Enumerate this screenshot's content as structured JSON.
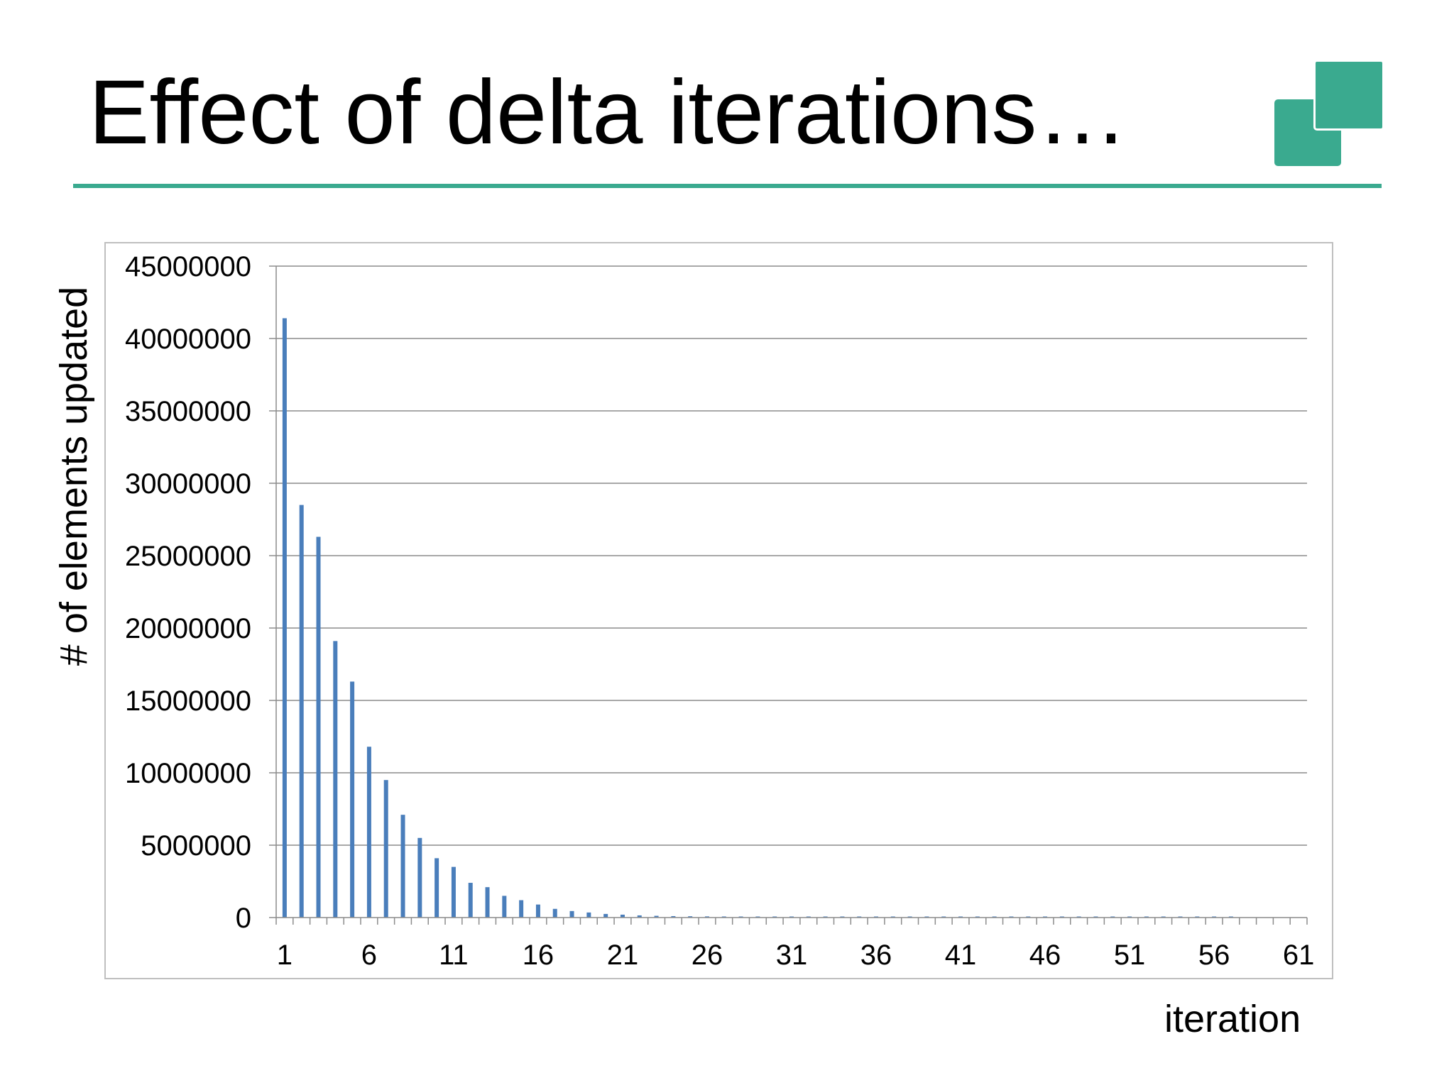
{
  "slide": {
    "title": "Effect of delta iterations…",
    "accent_color": "#3aaa8f"
  },
  "logo": {
    "icon": "two-overlapping-squares-icon",
    "color": "#3aaa8f"
  },
  "chart_data": {
    "type": "bar",
    "title": "",
    "xlabel": "iteration",
    "ylabel": "# of elements updated",
    "ylim": [
      0,
      45000000
    ],
    "yticks": [
      "0",
      "5000000",
      "10000000",
      "15000000",
      "20000000",
      "25000000",
      "30000000",
      "35000000",
      "40000000",
      "45000000"
    ],
    "xtick_labels": [
      "1",
      "6",
      "11",
      "16",
      "21",
      "26",
      "31",
      "36",
      "41",
      "46",
      "51",
      "56",
      "61"
    ],
    "grid": true,
    "legend": "none",
    "bar_color": "#4a7ebb",
    "categories": [
      1,
      2,
      3,
      4,
      5,
      6,
      7,
      8,
      9,
      10,
      11,
      12,
      13,
      14,
      15,
      16,
      17,
      18,
      19,
      20,
      21,
      22,
      23,
      24,
      25,
      26,
      27,
      28,
      29,
      30,
      31,
      32,
      33,
      34,
      35,
      36,
      37,
      38,
      39,
      40,
      41,
      42,
      43,
      44,
      45,
      46,
      47,
      48,
      49,
      50,
      51,
      52,
      53,
      54,
      55,
      56,
      57,
      58,
      59,
      60,
      61
    ],
    "values": [
      41400000,
      28500000,
      26300000,
      19100000,
      16300000,
      11800000,
      9500000,
      7100000,
      5500000,
      4100000,
      3500000,
      2400000,
      2100000,
      1500000,
      1200000,
      900000,
      600000,
      450000,
      350000,
      250000,
      200000,
      150000,
      120000,
      100000,
      90000,
      80000,
      75000,
      70000,
      65000,
      60000,
      55000,
      52000,
      50000,
      48000,
      46000,
      45000,
      44000,
      43000,
      42000,
      41000,
      40000,
      40000,
      39000,
      39000,
      38000,
      38000,
      37000,
      37000,
      36000,
      36000,
      35000,
      35000,
      34000,
      34000,
      33000,
      33000,
      32000,
      0,
      0,
      0,
      0
    ]
  }
}
